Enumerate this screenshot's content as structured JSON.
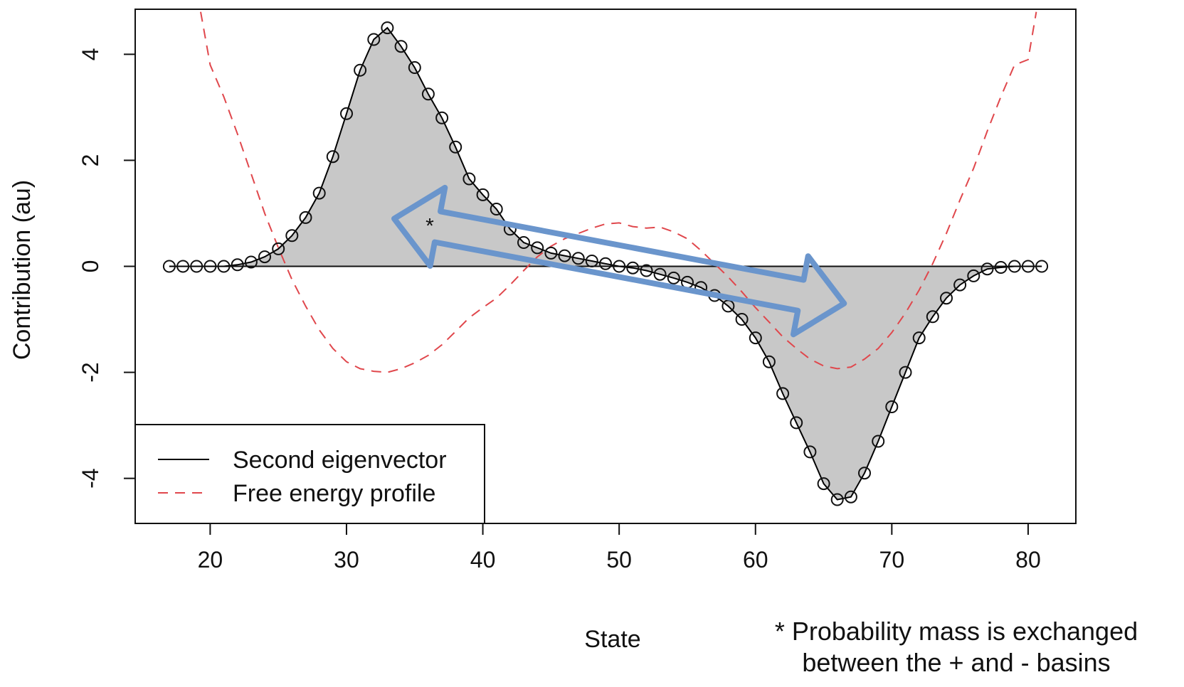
{
  "chart_data": {
    "type": "line",
    "xlabel": "State",
    "ylabel": "Contribution (au)",
    "xlim": [
      14.5,
      83.5
    ],
    "ylim": [
      -4.85,
      4.85
    ],
    "xticks": [
      20,
      30,
      40,
      50,
      60,
      70,
      80
    ],
    "yticks": [
      -4,
      -2,
      0,
      2,
      4
    ],
    "legend_position": "bottom-left",
    "series": [
      {
        "name": "Second eigenvector",
        "style": "solid line with open circles, area to zero shaded grey",
        "color": "#000000",
        "fill": "#c8c8c8",
        "x": [
          17,
          18,
          19,
          20,
          21,
          22,
          23,
          24,
          25,
          26,
          27,
          28,
          29,
          30,
          31,
          32,
          33,
          34,
          35,
          36,
          37,
          38,
          39,
          40,
          41,
          42,
          43,
          44,
          45,
          46,
          47,
          48,
          49,
          50,
          51,
          52,
          53,
          54,
          55,
          56,
          57,
          58,
          59,
          60,
          61,
          62,
          63,
          64,
          65,
          66,
          67,
          68,
          69,
          70,
          71,
          72,
          73,
          74,
          75,
          76,
          77,
          78,
          79,
          80,
          81
        ],
        "values": [
          0,
          0,
          0,
          0,
          0,
          0.03,
          0.08,
          0.18,
          0.33,
          0.58,
          0.92,
          1.38,
          2.07,
          2.88,
          3.7,
          4.28,
          4.5,
          4.15,
          3.75,
          3.25,
          2.8,
          2.25,
          1.65,
          1.35,
          1.08,
          0.7,
          0.45,
          0.35,
          0.25,
          0.2,
          0.15,
          0.1,
          0.05,
          0,
          -0.03,
          -0.08,
          -0.15,
          -0.22,
          -0.3,
          -0.4,
          -0.55,
          -0.75,
          -1,
          -1.35,
          -1.8,
          -2.4,
          -2.95,
          -3.5,
          -4.1,
          -4.4,
          -4.35,
          -3.9,
          -3.3,
          -2.65,
          -2,
          -1.35,
          -0.95,
          -0.6,
          -0.35,
          -0.18,
          -0.05,
          -0.02,
          0,
          0,
          0
        ]
      },
      {
        "name": "Free energy profile",
        "style": "dashed",
        "color": "#e0474c",
        "x": [
          19.3,
          20,
          21,
          22,
          23,
          24,
          25,
          26,
          27,
          28,
          29,
          30,
          31,
          32,
          33,
          34,
          35,
          36,
          37,
          38,
          39,
          40,
          41,
          42,
          43,
          44,
          45,
          46,
          47,
          48,
          49,
          50,
          51,
          52,
          53,
          54,
          55,
          56,
          57,
          58,
          59,
          60,
          61,
          62,
          63,
          64,
          65,
          66,
          67,
          68,
          69,
          70,
          71,
          72,
          73,
          74,
          75,
          76,
          77,
          78,
          79,
          80,
          80.6
        ],
        "values": [
          4.8,
          3.8,
          3.2,
          2.5,
          1.75,
          1.0,
          0.35,
          -0.25,
          -0.75,
          -1.2,
          -1.55,
          -1.8,
          -1.93,
          -1.98,
          -2.0,
          -1.93,
          -1.82,
          -1.68,
          -1.48,
          -1.23,
          -0.97,
          -0.78,
          -0.6,
          -0.35,
          -0.08,
          0.18,
          0.38,
          0.52,
          0.62,
          0.72,
          0.8,
          0.82,
          0.75,
          0.72,
          0.74,
          0.65,
          0.52,
          0.3,
          0.05,
          -0.2,
          -0.48,
          -0.78,
          -1.05,
          -1.33,
          -1.55,
          -1.75,
          -1.88,
          -1.93,
          -1.9,
          -1.75,
          -1.55,
          -1.25,
          -0.88,
          -0.45,
          0.05,
          0.62,
          1.25,
          1.85,
          2.55,
          3.2,
          3.8,
          3.9,
          4.8
        ]
      }
    ],
    "annotations": {
      "arrow_label": "*",
      "footnote_lines": [
        "* Probability mass is exchanged",
        "between the + and - basins"
      ],
      "double_arrow_from": [
        33.5,
        0.9
      ],
      "double_arrow_to": [
        66.5,
        -0.7
      ]
    }
  }
}
